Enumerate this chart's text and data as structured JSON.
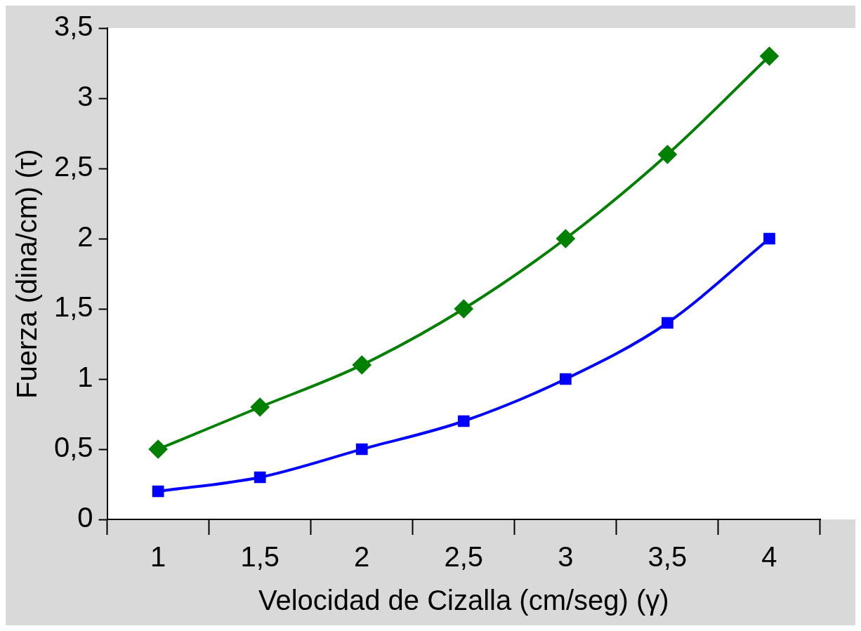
{
  "chart_data": {
    "type": "line",
    "xlabel": "Velocidad de Cizalla (cm/seg) (γ)",
    "ylabel": "Fuerza (dina/cm) (τ)",
    "categories": [
      "1",
      "1,5",
      "2",
      "2,5",
      "3",
      "3,5",
      "4"
    ],
    "series": [
      {
        "color": "#008000",
        "marker": "diamond",
        "values": [
          0.5,
          0.8,
          1.1,
          1.5,
          2.0,
          2.6,
          3.3
        ]
      },
      {
        "color": "#0000ff",
        "marker": "square",
        "values": [
          0.2,
          0.3,
          0.5,
          0.7,
          1.0,
          1.4,
          2.0
        ]
      }
    ],
    "ylim": [
      0,
      3.5
    ],
    "yticks": [
      0,
      {
        "value": 0.5,
        "label": "0,5"
      },
      1,
      {
        "value": 1.5,
        "label": "1,5"
      },
      2,
      {
        "value": 2.5,
        "label": "2,5"
      },
      3,
      {
        "value": 3.5,
        "label": "3,5"
      }
    ],
    "grid": false,
    "legend": false,
    "line_style": "solid"
  }
}
